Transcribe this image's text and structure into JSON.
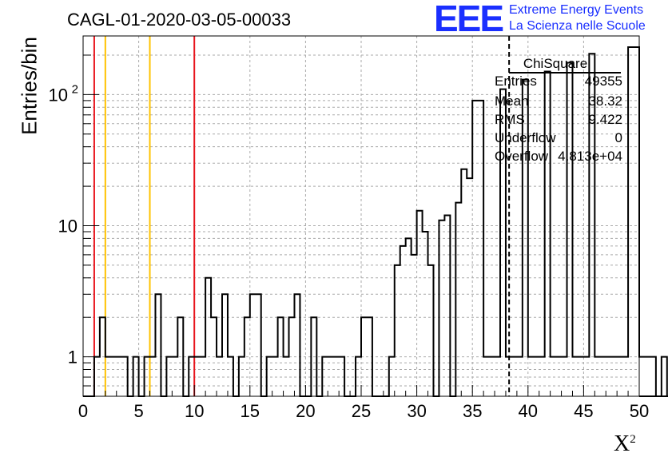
{
  "title": "CAGL-01-2020-03-05-00033",
  "ylabel": "Entries/bin",
  "xlabel": "X",
  "xlabel_sup": "2",
  "logo": {
    "mark": "EEE",
    "line1": "Extreme Energy Events",
    "line2": "La Scienza nelle Scuole",
    "color": "#1a2fff"
  },
  "stats": {
    "name": "ChiSquare",
    "rows": [
      {
        "key": "Entries",
        "value": "49355"
      },
      {
        "key": "Mean",
        "value": "38.32"
      },
      {
        "key": "RMS",
        "value": "9.422"
      },
      {
        "key": "Underflow",
        "value": "0"
      },
      {
        "key": "Overflow",
        "value": "4.813e+04"
      }
    ]
  },
  "chart_data": {
    "type": "histogram",
    "y_scale": "log",
    "xlim": [
      0,
      50
    ],
    "ylim": [
      0.5,
      280
    ],
    "bin_width": 0.5,
    "x_ticks": [
      "0",
      "5",
      "10",
      "15",
      "20",
      "25",
      "30",
      "35",
      "40",
      "45",
      "50"
    ],
    "y_ticks": [
      {
        "value": 1,
        "label": "1"
      },
      {
        "value": 10,
        "label": "10"
      },
      {
        "value": 100,
        "label": "10",
        "sup": "2"
      }
    ],
    "grid": true,
    "bin_values": [
      0,
      0,
      1,
      2,
      1,
      1,
      1,
      1,
      0,
      1,
      0,
      1,
      1,
      3,
      0,
      1,
      1,
      2,
      0,
      1,
      1,
      1,
      4,
      2,
      1,
      3,
      1,
      0,
      1,
      2,
      3,
      3,
      0,
      1,
      1,
      2,
      1,
      2,
      3,
      0,
      0,
      2,
      0,
      1,
      1,
      1,
      1,
      0,
      0,
      1,
      2,
      2,
      0,
      0,
      0,
      1,
      5,
      7,
      8,
      6,
      13,
      9,
      5,
      0,
      11,
      12,
      0,
      15,
      27,
      23,
      0,
      17,
      20,
      0,
      20,
      41,
      26,
      0,
      42,
      61,
      0,
      1,
      2,
      2,
      1,
      81,
      1,
      0,
      64,
      1,
      1,
      0,
      72,
      0,
      33,
      2,
      0,
      100,
      1,
      2,
      1,
      1,
      1,
      0,
      1,
      0,
      1,
      0,
      1,
      0,
      1,
      0,
      1,
      0,
      1,
      0,
      1,
      0,
      1,
      0,
      1,
      0,
      1,
      0,
      1,
      0,
      1,
      0,
      1,
      0,
      1,
      0,
      1,
      0,
      1,
      0,
      1,
      0,
      1,
      0,
      1,
      0,
      1,
      0,
      1,
      0,
      1,
      0,
      1,
      0,
      1,
      0,
      1,
      0,
      1,
      0,
      1,
      0,
      1,
      0,
      1,
      0,
      1,
      0,
      1,
      0,
      1,
      0,
      1,
      0,
      1,
      0,
      1,
      0,
      1,
      0,
      1,
      0,
      1,
      0,
      1,
      0,
      1,
      0,
      1,
      0,
      1,
      0,
      1,
      0,
      1,
      0,
      1,
      0,
      1,
      0,
      1,
      0,
      1,
      0
    ],
    "tail_spikes": [
      {
        "x": 35.0,
        "value": 90
      },
      {
        "x": 35.5,
        "value": 90
      },
      {
        "x": 36.0,
        "value": 1
      },
      {
        "x": 36.5,
        "value": 1
      },
      {
        "x": 37.0,
        "value": 1
      },
      {
        "x": 37.5,
        "value": 110
      },
      {
        "x": 38.0,
        "value": 1
      },
      {
        "x": 38.5,
        "value": 1
      },
      {
        "x": 39.0,
        "value": 1
      },
      {
        "x": 39.5,
        "value": 130
      },
      {
        "x": 40.0,
        "value": 1
      },
      {
        "x": 40.5,
        "value": 1
      },
      {
        "x": 41.0,
        "value": 1
      },
      {
        "x": 41.5,
        "value": 150
      },
      {
        "x": 42.0,
        "value": 1
      },
      {
        "x": 42.5,
        "value": 1
      },
      {
        "x": 43.0,
        "value": 1
      },
      {
        "x": 43.5,
        "value": 175
      },
      {
        "x": 44.0,
        "value": 1
      },
      {
        "x": 44.5,
        "value": 1
      },
      {
        "x": 45.0,
        "value": 1
      },
      {
        "x": 45.5,
        "value": 205
      },
      {
        "x": 46.0,
        "value": 1
      },
      {
        "x": 46.5,
        "value": 1
      },
      {
        "x": 47.0,
        "value": 1
      },
      {
        "x": 47.5,
        "value": 1
      },
      {
        "x": 48.0,
        "value": 1
      },
      {
        "x": 48.5,
        "value": 1
      },
      {
        "x": 49.0,
        "value": 230
      },
      {
        "x": 49.5,
        "value": 230
      }
    ],
    "vertical_lines": [
      {
        "x": 1.0,
        "color": "#e8141c",
        "style": "solid"
      },
      {
        "x": 2.0,
        "color": "#ffc200",
        "style": "solid"
      },
      {
        "x": 6.0,
        "color": "#ffc200",
        "style": "solid"
      },
      {
        "x": 10.0,
        "color": "#e8141c",
        "style": "solid"
      },
      {
        "x": 38.3,
        "color": "#000000",
        "style": "dashed"
      }
    ]
  }
}
